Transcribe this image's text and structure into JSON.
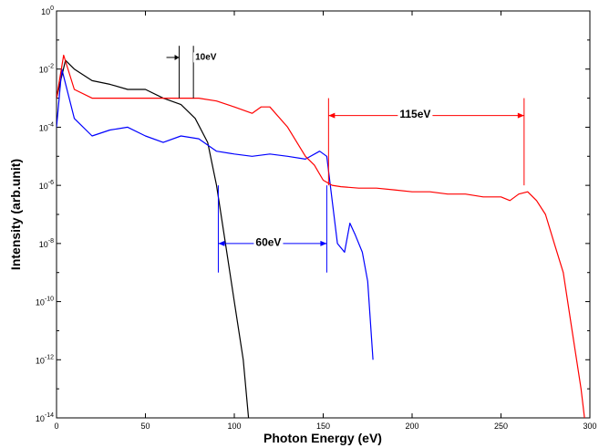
{
  "chart_data": {
    "type": "line",
    "title": "",
    "xlabel": "Photon Energy (eV)",
    "ylabel": "Intensity (arb.unit)",
    "xlim": [
      0,
      300
    ],
    "ylim": [
      1e-14,
      1
    ],
    "y_scale": "log",
    "grid": false,
    "legend": "none",
    "x_ticks": [
      {
        "value": 0,
        "label": "0"
      },
      {
        "value": 50,
        "label": "50"
      },
      {
        "value": 100,
        "label": "100"
      },
      {
        "value": 150,
        "label": "150"
      },
      {
        "value": 200,
        "label": "200"
      },
      {
        "value": 250,
        "label": "250"
      },
      {
        "value": 300,
        "label": "300"
      }
    ],
    "y_ticks": [
      {
        "exp": 0,
        "label": "10",
        "sup": "0"
      },
      {
        "exp": -2,
        "label": "10",
        "sup": "-2"
      },
      {
        "exp": -4,
        "label": "10",
        "sup": "-4"
      },
      {
        "exp": -6,
        "label": "10",
        "sup": "-6"
      },
      {
        "exp": -8,
        "label": "10",
        "sup": "-8"
      },
      {
        "exp": -10,
        "label": "10",
        "sup": "-10"
      },
      {
        "exp": -12,
        "label": "10",
        "sup": "-12"
      },
      {
        "exp": -14,
        "label": "10",
        "sup": "-14"
      }
    ],
    "series": [
      {
        "color": "#000000",
        "x": [
          0,
          5,
          10,
          20,
          30,
          40,
          50,
          60,
          70,
          78,
          85,
          90,
          95,
          100,
          105,
          108
        ],
        "y": [
          0.001,
          0.02,
          0.01,
          0.004,
          0.003,
          0.002,
          0.002,
          0.001,
          0.0006,
          0.0002,
          3e-05,
          1e-06,
          1e-08,
          1e-10,
          1e-12,
          1e-14
        ]
      },
      {
        "color": "#0000ff",
        "x": [
          0,
          3,
          10,
          20,
          30,
          40,
          50,
          60,
          70,
          80,
          90,
          100,
          110,
          120,
          130,
          140,
          148,
          152,
          158,
          162,
          165,
          168,
          172,
          175,
          178
        ],
        "y": [
          0.0001,
          0.01,
          0.0002,
          5e-05,
          8e-05,
          0.0001,
          5e-05,
          3e-05,
          5e-05,
          4e-05,
          1.5e-05,
          1.2e-05,
          1e-05,
          1.2e-05,
          1e-05,
          8e-06,
          1.5e-05,
          1e-05,
          1e-08,
          5e-09,
          5e-08,
          2e-08,
          5e-09,
          5e-10,
          1e-12
        ]
      },
      {
        "color": "#ff0000",
        "x": [
          0,
          4,
          10,
          20,
          30,
          40,
          50,
          60,
          70,
          80,
          90,
          100,
          110,
          115,
          120,
          130,
          140,
          145,
          150,
          155,
          160,
          170,
          180,
          190,
          200,
          210,
          220,
          230,
          240,
          250,
          255,
          260,
          265,
          270,
          275,
          280,
          285,
          290,
          295,
          297
        ],
        "y": [
          0.001,
          0.03,
          0.002,
          0.001,
          0.001,
          0.001,
          0.001,
          0.001,
          0.001,
          0.001,
          0.0008,
          0.0005,
          0.0003,
          0.0005,
          0.0005,
          0.0001,
          1e-05,
          5e-06,
          1.5e-06,
          1e-06,
          9e-07,
          8e-07,
          8e-07,
          7e-07,
          6e-07,
          6e-07,
          5e-07,
          5e-07,
          4e-07,
          4e-07,
          3e-07,
          5e-07,
          6e-07,
          3e-07,
          1e-07,
          1e-08,
          1e-09,
          1e-11,
          1e-13,
          1e-14
        ]
      }
    ],
    "annotations": [
      {
        "text": "10eV",
        "x": 78,
        "exp": -1.55,
        "color": "#000000",
        "size": 10
      },
      {
        "text": "115eV",
        "x": 193,
        "exp": -3.55,
        "color": "#000000",
        "size": 12
      },
      {
        "text": "60eV",
        "x": 112,
        "exp": -7.95,
        "color": "#000000",
        "size": 12
      }
    ],
    "markers": [
      {
        "kind": "spacing",
        "color": "#000000",
        "x1": 69,
        "x2": 77,
        "y_exp": -1.6,
        "v_top": -1.2,
        "v_bot": -3.0,
        "arrow_len": 7
      },
      {
        "kind": "spacing",
        "color": "#ff0000",
        "x1": 153,
        "x2": 263,
        "y_exp": -3.6,
        "v_top": -3.0,
        "v_bot": -6.0,
        "arrow_len": 0
      },
      {
        "kind": "spacing",
        "color": "#0000ff",
        "x1": 91,
        "x2": 152,
        "y_exp": -8.0,
        "v_top": -6.0,
        "v_bot": -9.0,
        "arrow_len": 0
      }
    ]
  }
}
